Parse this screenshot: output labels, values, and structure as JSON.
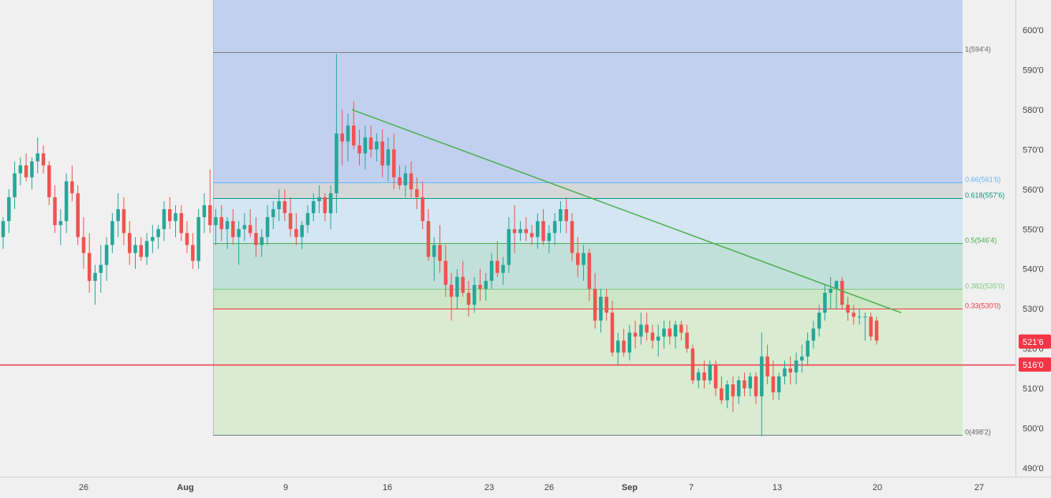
{
  "chart_data": {
    "type": "candlestick",
    "title": "",
    "xlabel": "",
    "ylabel": "",
    "ylim": [
      486,
      606
    ],
    "grid": false,
    "y_ticks": [
      {
        "value": 600,
        "label": "600'0"
      },
      {
        "value": 590,
        "label": "590'0"
      },
      {
        "value": 580,
        "label": "580'0"
      },
      {
        "value": 570,
        "label": "570'0"
      },
      {
        "value": 560,
        "label": "560'0"
      },
      {
        "value": 550,
        "label": "550'0"
      },
      {
        "value": 540,
        "label": "540'0"
      },
      {
        "value": 530,
        "label": "530'0"
      },
      {
        "value": 520,
        "label": "520'0"
      },
      {
        "value": 510,
        "label": "510'0"
      },
      {
        "value": 500,
        "label": "500'0"
      },
      {
        "value": 490,
        "label": "490'0"
      }
    ],
    "x_ticks": [
      {
        "date": "Jul 26",
        "label": "26",
        "bold": false
      },
      {
        "date": "Aug 2",
        "label": "Aug",
        "bold": true
      },
      {
        "date": "Aug 9",
        "label": "9",
        "bold": false
      },
      {
        "date": "Aug 16",
        "label": "16",
        "bold": false
      },
      {
        "date": "Aug 23",
        "label": "23",
        "bold": false
      },
      {
        "date": "Aug 26",
        "label": "26",
        "bold": false
      },
      {
        "date": "Sep 1",
        "label": "Sep",
        "bold": true
      },
      {
        "date": "Sep 7",
        "label": "7",
        "bold": false
      },
      {
        "date": "Sep 13",
        "label": "13",
        "bold": false
      },
      {
        "date": "Sep 20",
        "label": "20",
        "bold": false
      },
      {
        "date": "Sep 27",
        "label": "27",
        "bold": false
      }
    ],
    "candles": [
      [
        548,
        553,
        545,
        552
      ],
      [
        552,
        560,
        549,
        558
      ],
      [
        558,
        567,
        555,
        564
      ],
      [
        564,
        568,
        561,
        566
      ],
      [
        566,
        569,
        562,
        563
      ],
      [
        563,
        568,
        560,
        567
      ],
      [
        567,
        573,
        564,
        569
      ],
      [
        569,
        571,
        564,
        566
      ],
      [
        566,
        567,
        556,
        558
      ],
      [
        558,
        561,
        549,
        551
      ],
      [
        551,
        555,
        546,
        552
      ],
      [
        552,
        564,
        549,
        562
      ],
      [
        562,
        566,
        557,
        559
      ],
      [
        559,
        561,
        546,
        548
      ],
      [
        548,
        553,
        540,
        544
      ],
      [
        544,
        549,
        534,
        537
      ],
      [
        537,
        541,
        531,
        539
      ],
      [
        539,
        546,
        534,
        541
      ],
      [
        541,
        548,
        537,
        546
      ],
      [
        546,
        554,
        544,
        552
      ],
      [
        552,
        559,
        548,
        555
      ],
      [
        555,
        558,
        546,
        549
      ],
      [
        549,
        552,
        541,
        544
      ],
      [
        544,
        548,
        540,
        546
      ],
      [
        546,
        548,
        542,
        543
      ],
      [
        543,
        549,
        541,
        547
      ],
      [
        547,
        551,
        544,
        548
      ],
      [
        548,
        551,
        545,
        550
      ],
      [
        550,
        557,
        547,
        555
      ],
      [
        555,
        558,
        550,
        552
      ],
      [
        552,
        556,
        548,
        554
      ],
      [
        554,
        556,
        547,
        549
      ],
      [
        549,
        552,
        544,
        546
      ],
      [
        546,
        549,
        540,
        542
      ],
      [
        542,
        555,
        540,
        553
      ],
      [
        553,
        559,
        549,
        556
      ],
      [
        556,
        565,
        549,
        551
      ],
      [
        551,
        555,
        546,
        553
      ],
      [
        553,
        556,
        547,
        550
      ],
      [
        550,
        553,
        545,
        552
      ],
      [
        552,
        555,
        546,
        548
      ],
      [
        548,
        552,
        541,
        550
      ],
      [
        550,
        554,
        547,
        551
      ],
      [
        551,
        555,
        548,
        549
      ],
      [
        549,
        553,
        543,
        546
      ],
      [
        546,
        550,
        543,
        548
      ],
      [
        548,
        556,
        546,
        553
      ],
      [
        553,
        557,
        550,
        555
      ],
      [
        555,
        560,
        552,
        557
      ],
      [
        557,
        560,
        552,
        554
      ],
      [
        554,
        558,
        548,
        550
      ],
      [
        550,
        554,
        546,
        548
      ],
      [
        548,
        552,
        545,
        551
      ],
      [
        551,
        556,
        549,
        554
      ],
      [
        554,
        559,
        552,
        557
      ],
      [
        557,
        561,
        554,
        558
      ],
      [
        558,
        559,
        552,
        554
      ],
      [
        554,
        561,
        550,
        559
      ],
      [
        559,
        594,
        554,
        574
      ],
      [
        574,
        580,
        566,
        572
      ],
      [
        572,
        579,
        567,
        576
      ],
      [
        576,
        582,
        570,
        571
      ],
      [
        571,
        575,
        566,
        569
      ],
      [
        569,
        576,
        565,
        573
      ],
      [
        573,
        576,
        568,
        570
      ],
      [
        570,
        574,
        567,
        572
      ],
      [
        572,
        575,
        563,
        566
      ],
      [
        566,
        573,
        562,
        570
      ],
      [
        570,
        574,
        560,
        563
      ],
      [
        563,
        566,
        560,
        561
      ],
      [
        561,
        566,
        558,
        564
      ],
      [
        564,
        567,
        558,
        560
      ],
      [
        560,
        563,
        555,
        558
      ],
      [
        558,
        562,
        550,
        552
      ],
      [
        552,
        555,
        542,
        543
      ],
      [
        543,
        548,
        537,
        546
      ],
      [
        546,
        551,
        539,
        542
      ],
      [
        542,
        546,
        533,
        536
      ],
      [
        536,
        539,
        527,
        533
      ],
      [
        533,
        540,
        530,
        538
      ],
      [
        538,
        542,
        533,
        534
      ],
      [
        534,
        537,
        528,
        531
      ],
      [
        531,
        538,
        529,
        536
      ],
      [
        536,
        540,
        532,
        535
      ],
      [
        535,
        539,
        532,
        537
      ],
      [
        537,
        544,
        535,
        542
      ],
      [
        542,
        547,
        538,
        539
      ],
      [
        539,
        543,
        536,
        541
      ],
      [
        541,
        553,
        539,
        550
      ],
      [
        550,
        556,
        544,
        549
      ],
      [
        549,
        552,
        547,
        550
      ],
      [
        550,
        553,
        547,
        549
      ],
      [
        549,
        551,
        546,
        548
      ],
      [
        548,
        554,
        545,
        552
      ],
      [
        552,
        555,
        546,
        547
      ],
      [
        547,
        551,
        544,
        549
      ],
      [
        549,
        554,
        546,
        552
      ],
      [
        552,
        557,
        549,
        555
      ],
      [
        555,
        558,
        549,
        552
      ],
      [
        552,
        554,
        542,
        544
      ],
      [
        544,
        548,
        538,
        541
      ],
      [
        541,
        546,
        537,
        544
      ],
      [
        544,
        545,
        532,
        535
      ],
      [
        535,
        539,
        525,
        527
      ],
      [
        527,
        535,
        524,
        533
      ],
      [
        533,
        535,
        527,
        529
      ],
      [
        529,
        532,
        518,
        519
      ],
      [
        519,
        524,
        516,
        522
      ],
      [
        522,
        525,
        518,
        519
      ],
      [
        519,
        526,
        517,
        524
      ],
      [
        524,
        527,
        520,
        523
      ],
      [
        523,
        529,
        521,
        526
      ],
      [
        526,
        529,
        522,
        524
      ],
      [
        524,
        526,
        520,
        522
      ],
      [
        522,
        526,
        518,
        523
      ],
      [
        523,
        527,
        520,
        525
      ],
      [
        525,
        527,
        521,
        523
      ],
      [
        523,
        527,
        520,
        526
      ],
      [
        526,
        527,
        522,
        524
      ],
      [
        524,
        526,
        519,
        520
      ],
      [
        520,
        521,
        511,
        512
      ],
      [
        512,
        515,
        510,
        514
      ],
      [
        514,
        517,
        510,
        512
      ],
      [
        512,
        517,
        511,
        516
      ],
      [
        516,
        517,
        508,
        510
      ],
      [
        510,
        513,
        506,
        507
      ],
      [
        507,
        512,
        505,
        511
      ],
      [
        511,
        513,
        504,
        508
      ],
      [
        508,
        513,
        506,
        512
      ],
      [
        512,
        514,
        508,
        510
      ],
      [
        510,
        514,
        508,
        513
      ],
      [
        513,
        514,
        506,
        508
      ],
      [
        508,
        524,
        498,
        518
      ],
      [
        518,
        521,
        511,
        513
      ],
      [
        513,
        517,
        507,
        509
      ],
      [
        509,
        514,
        507,
        513
      ],
      [
        513,
        517,
        511,
        515
      ],
      [
        515,
        518,
        511,
        514
      ],
      [
        514,
        519,
        511,
        517
      ],
      [
        517,
        521,
        514,
        518
      ],
      [
        518,
        524,
        516,
        522
      ],
      [
        522,
        527,
        520,
        525
      ],
      [
        525,
        531,
        523,
        529
      ],
      [
        529,
        536,
        527,
        534
      ],
      [
        534,
        538,
        530,
        535
      ],
      [
        535,
        537,
        530,
        537
      ],
      [
        537,
        538,
        530,
        531
      ],
      [
        531,
        533,
        527,
        529
      ],
      [
        529,
        531,
        526,
        528
      ],
      [
        528,
        530,
        526,
        528
      ],
      [
        528,
        529,
        522,
        528
      ],
      [
        528,
        529,
        522,
        523
      ],
      [
        527,
        528,
        521,
        522
      ]
    ],
    "fib_levels": [
      {
        "ratio": "1",
        "value": 594.5,
        "label": "1(594'4)",
        "line_color": "#787b86",
        "fill": "#c2d0f0"
      },
      {
        "ratio": "0.66",
        "value": 561.75,
        "label": "0.66(561'6)",
        "line_color": "#64b5f6",
        "fill": "#d6d7d8"
      },
      {
        "ratio": "0.618",
        "value": 557.75,
        "label": "0.618(557'6)",
        "line_color": "#089981",
        "fill": "#d3e6f1"
      },
      {
        "ratio": "0.5",
        "value": 546.5,
        "label": "0.5(546'4)",
        "line_color": "#4caf50",
        "fill": "#c2e0da"
      },
      {
        "ratio": "0.382",
        "value": 535.0,
        "label": "0.382(535'0)",
        "line_color": "#81c784",
        "fill": "#cde7c6"
      },
      {
        "ratio": "0.33",
        "value": 530.0,
        "label": "0.33(530'0)",
        "line_color": "#f23645",
        "fill": "#d9ecd1"
      },
      {
        "ratio": "0",
        "value": 498.25,
        "label": "0(498'2)",
        "line_color": "#787b86",
        "fill": "#f1cdcf"
      }
    ],
    "fib_top_fill": "#c2d0f0",
    "trendline": {
      "start": {
        "date": "Aug 14",
        "value": 580
      },
      "end": {
        "date": "Sep 22",
        "value": 529
      },
      "color": "#4caf50"
    },
    "horizontal_line": {
      "value": 516.0,
      "label": "516'0",
      "color": "#f23645"
    },
    "last_price": {
      "value": 521.75,
      "label": "521'6",
      "color": "#f23645"
    },
    "colors": {
      "up": "#26a69a",
      "down": "#ef5350",
      "background": "#f0f0f0",
      "axis_text": "#444444"
    }
  }
}
